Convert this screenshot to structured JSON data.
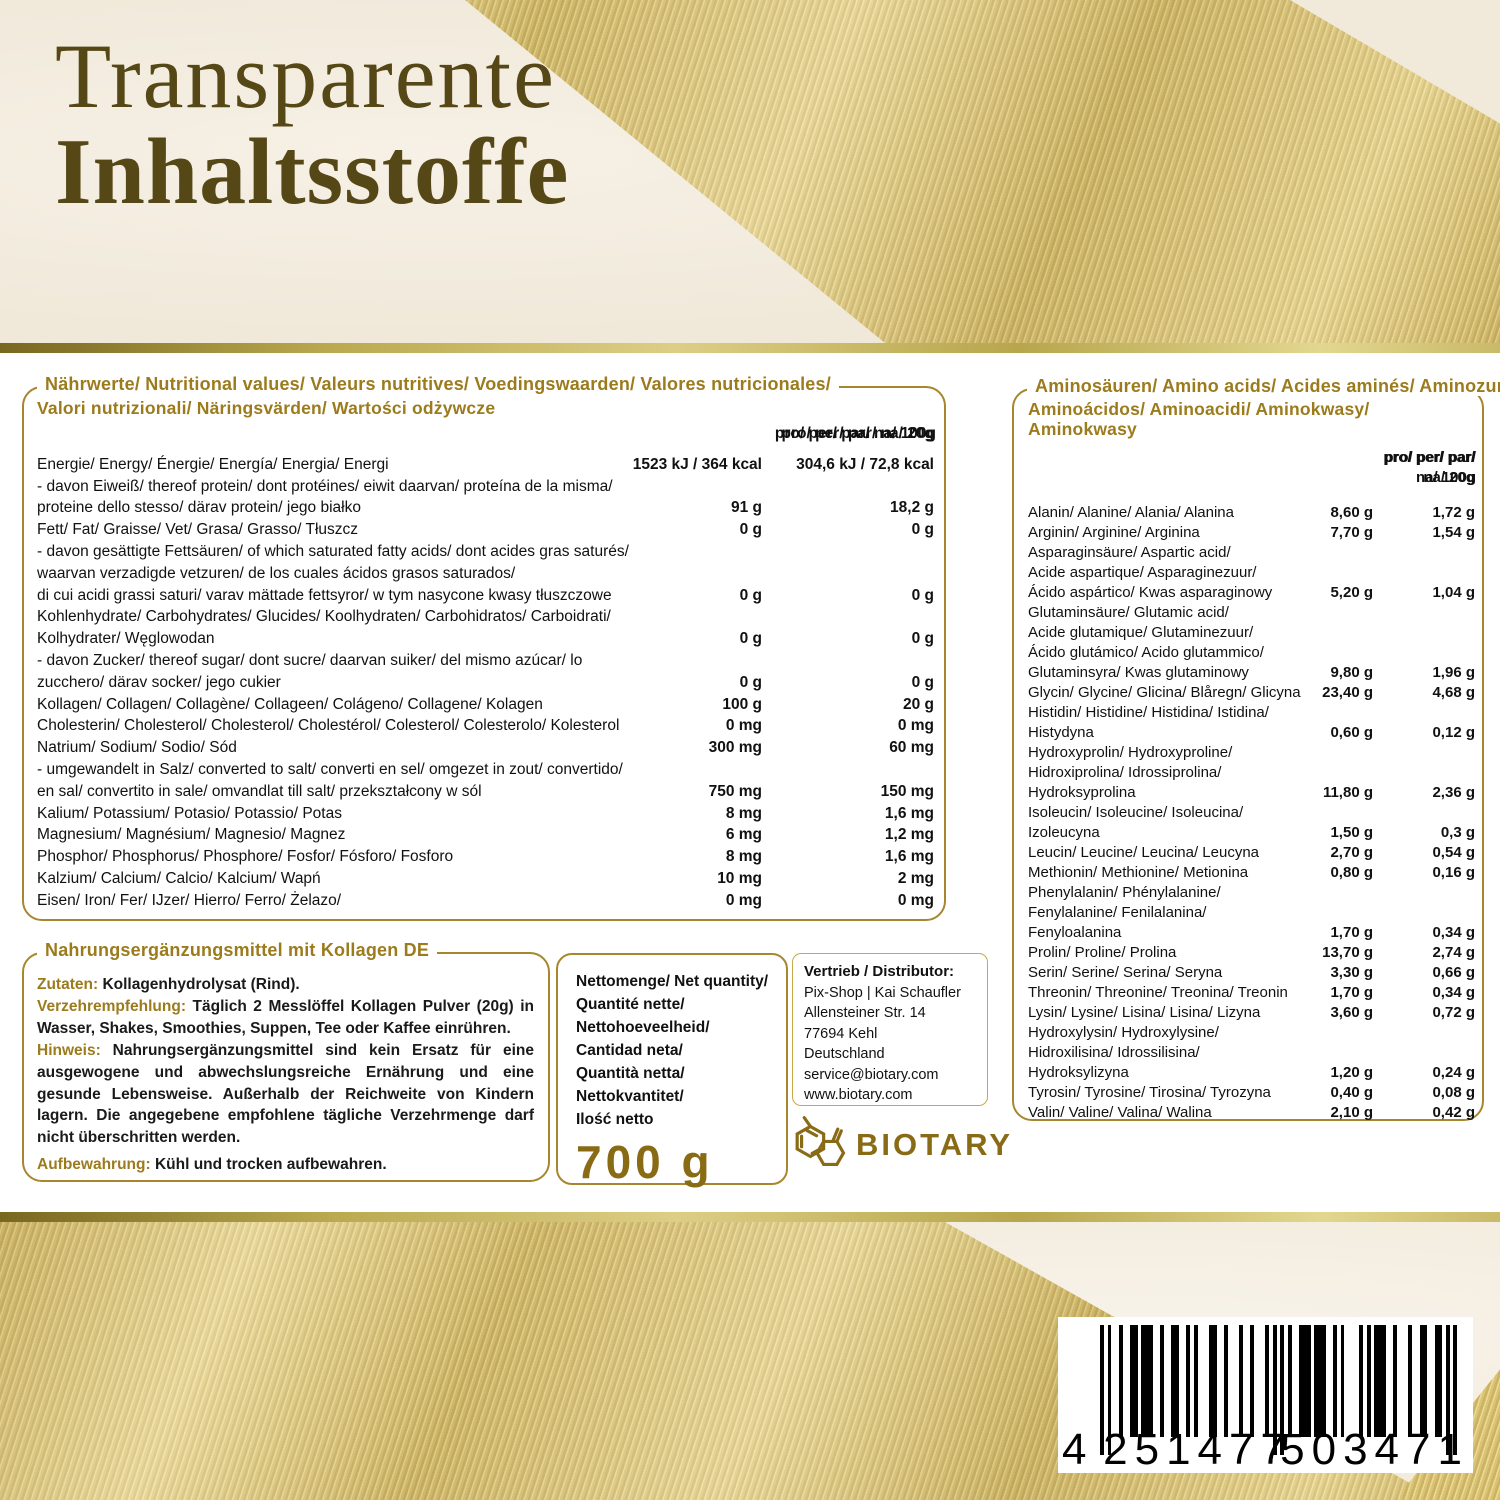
{
  "title": {
    "line1": "Transparente",
    "line2": "Inhaltsstoffe"
  },
  "colors": {
    "gold_accent": "#a8862e",
    "gold_heading": "#9c7b1d",
    "title_olive": "#564816",
    "silk_gold": "#d8c377",
    "cream_background": "#f1eadb",
    "body_text": "#111111"
  },
  "nutrition_box": {
    "legend": "Nährwerte/ Nutritional values/ Valeurs nutritives/ Voedingswaarden/ Valores nutricionales/",
    "subtitle": "Valori nutrizionali/ Näringsvärden/ Wartości odżywcze",
    "col_headers": {
      "per100": [
        "pro/ per/ par/ na/ 100g"
      ],
      "per20": [
        "pro/ per/ par/ na/ 20g"
      ]
    },
    "rows": [
      {
        "label": [
          "Energie/ Energy/ Énergie/ Energía/ Energia/  Energi"
        ],
        "v100": "1523 kJ / 364 kcal",
        "v20": "304,6 kJ / 72,8 kcal"
      },
      {
        "label": [
          "- davon Eiweiß/ thereof protein/ dont protéines/ eiwit daarvan/ proteína de la misma/",
          "proteine dello stesso/ därav protein/ jego białko"
        ],
        "v100": "91 g",
        "v20": "18,2 g"
      },
      {
        "label": [
          "Fett/ Fat/ Graisse/ Vet/ Grasa/ Grasso/ Tłuszcz"
        ],
        "v100": "0 g",
        "v20": "0 g"
      },
      {
        "label": [
          "- davon gesättigte Fettsäuren/ of which saturated fatty acids/ dont acides gras saturés/",
          "waarvan verzadigde vetzuren/ de los cuales ácidos grasos saturados/",
          "di cui acidi grassi saturi/ varav mättade fettsyror/ w tym nasycone kwasy tłuszczowe"
        ],
        "v100": "0 g",
        "v20": "0 g"
      },
      {
        "label": [
          "Kohlenhydrate/  Carbohydrates/  Glucides/  Koolhydraten/  Carbohidratos/  Carboidrati/",
          "Kolhydrater/ Węglowodan"
        ],
        "v100": "0 g",
        "v20": "0 g"
      },
      {
        "label": [
          "- davon Zucker/ thereof sugar/ dont sucre/ daarvan suiker/ del mismo azúcar/ lo",
          "zucchero/ därav socker/ jego cukier"
        ],
        "v100": "0 g",
        "v20": "0 g"
      },
      {
        "label": [
          "Kollagen/ Collagen/ Collagène/ Collageen/ Colágeno/ Collagene/ Kolagen"
        ],
        "v100": "100 g",
        "v20": "20 g"
      },
      {
        "label": [
          "Cholesterin/ Cholesterol/ Cholesterol/ Cholestérol/ Colesterol/ Colesterolo/ Kolesterol"
        ],
        "v100": "0 mg",
        "v20": "0 mg"
      },
      {
        "label": [
          "Natrium/ Sodium/ Sodio/ Sód"
        ],
        "v100": "300 mg",
        "v20": "60 mg"
      },
      {
        "label": [
          "- umgewandelt in Salz/ converted to salt/ converti en sel/ omgezet in zout/ convertido/",
          "en sal/ convertito in sale/ omvandlat till salt/ przekształcony w sól"
        ],
        "v100": "750 mg",
        "v20": "150 mg"
      },
      {
        "label": [
          "Kalium/ Potassium/ Potasio/ Potassio/ Potas"
        ],
        "v100": "8 mg",
        "v20": "1,6 mg"
      },
      {
        "label": [
          "Magnesium/ Magnésium/ Magnesio/ Magnez"
        ],
        "v100": "6 mg",
        "v20": "1,2 mg"
      },
      {
        "label": [
          "Phosphor/ Phosphorus/ Phosphore/ Fosfor/ Fósforo/ Fosforo"
        ],
        "v100": "8 mg",
        "v20": "1,6 mg"
      },
      {
        "label": [
          "Kalzium/ Calcium/ Calcio/ Kalcium/ Wapń"
        ],
        "v100": "10 mg",
        "v20": "2 mg"
      },
      {
        "label": [
          "Eisen/ Iron/ Fer/ IJzer/ Hierro/ Ferro/ Żelazo/"
        ],
        "v100": "0 mg",
        "v20": "0 mg"
      }
    ]
  },
  "amino_box": {
    "legend": "Aminosäuren/ Amino acids/ Acides aminés/ Aminozuren/",
    "subtitle": "Aminoácidos/ Aminoacidi/ Aminokwasy/ Aminokwasy",
    "col_headers": {
      "per100": [
        "pro/ per/ par/",
        "na/ 100g"
      ],
      "per20": [
        "pro/ per/ par/",
        "na/ 20g"
      ]
    },
    "rows": [
      {
        "label": [
          "Alanin/ Alanine/ Alania/ Alanina"
        ],
        "v100": "8,60 g",
        "v20": "1,72 g"
      },
      {
        "label": [
          "Arginin/ Arginine/ Arginina"
        ],
        "v100": "7,70 g",
        "v20": "1,54 g"
      },
      {
        "label": [
          "Asparaginsäure/ Aspartic acid/",
          "Acide aspartique/ Asparaginezuur/",
          "Ácido aspártico/ Kwas asparaginowy"
        ],
        "v100": "5,20 g",
        "v20": "1,04 g"
      },
      {
        "label": [
          "Glutaminsäure/ Glutamic acid/",
          "Acide glutamique/ Glutaminezuur/",
          "Ácido glutámico/ Acido glutammico/",
          "Glutaminsyra/ Kwas glutaminowy"
        ],
        "v100": "9,80 g",
        "v20": "1,96 g"
      },
      {
        "label": [
          "Glycin/ Glycine/ Glicina/ Blåregn/ Glicyna"
        ],
        "v100": "23,40 g",
        "v20": "4,68 g"
      },
      {
        "label": [
          "Histidin/ Histidine/ Histidina/ Istidina/",
          "Histydyna"
        ],
        "v100": "0,60 g",
        "v20": "0,12 g"
      },
      {
        "label": [
          "Hydroxyprolin/ Hydroxyproline/",
          "Hidroxiprolina/ Idrossiprolina/",
          "Hydroksyprolina"
        ],
        "v100": "11,80 g",
        "v20": "2,36 g"
      },
      {
        "label": [
          "Isoleucin/ Isoleucine/ Isoleucina/",
          "Izoleucyna"
        ],
        "v100": "1,50 g",
        "v20": "0,3 g"
      },
      {
        "label": [
          "Leucin/ Leucine/ Leucina/ Leucyna"
        ],
        "v100": "2,70 g",
        "v20": "0,54 g"
      },
      {
        "label": [
          "Methionin/ Methionine/ Metionina"
        ],
        "v100": "0,80 g",
        "v20": "0,16 g"
      },
      {
        "label": [
          "Phenylalanin/ Phénylalanine/",
          "Fenylalanine/ Fenilalanina/",
          "Fenyloalanina"
        ],
        "v100": "1,70 g",
        "v20": "0,34 g"
      },
      {
        "label": [
          "Prolin/ Proline/ Prolina"
        ],
        "v100": "13,70 g",
        "v20": "2,74 g"
      },
      {
        "label": [
          "Serin/ Serine/ Serina/ Seryna"
        ],
        "v100": "3,30 g",
        "v20": "0,66 g"
      },
      {
        "label": [
          "Threonin/ Threonine/ Treonina/ Treonin"
        ],
        "v100": "1,70 g",
        "v20": "0,34 g"
      },
      {
        "label": [
          "Lysin/ Lysine/ Lisina/ Lisina/ Lizyna"
        ],
        "v100": "3,60 g",
        "v20": "0,72 g"
      },
      {
        "label": [
          "Hydroxylysin/ Hydroxylysine/",
          "Hidroxilisina/ Idrossilisina/",
          "Hydroksylizyna"
        ],
        "v100": "1,20 g",
        "v20": "0,24 g"
      },
      {
        "label": [
          "Tyrosin/ Tyrosine/ Tirosina/ Tyrozyna"
        ],
        "v100": "0,40 g",
        "v20": "0,08 g"
      },
      {
        "label": [
          "Valin/ Valine/ Valina/ Walina"
        ],
        "v100": "2,10 g",
        "v20": "0,42 g"
      }
    ]
  },
  "info_box": {
    "legend": "Nahrungsergänzungsmittel mit Kollagen  DE",
    "paragraphs": [
      {
        "label": "Zutaten:",
        "text": " Kollagenhydrolysat (Rind)."
      },
      {
        "label": "Verzehrempfehlung:",
        "text": " Täglich 2 Messlöffel Kollagen Pulver (20g) in Wasser, Shakes, Smoothies, Suppen, Tee oder Kaffee einrühren."
      },
      {
        "label": "Hinweis:",
        "text": " Nahrungsergänzungsmittel sind kein Ersatz für eine ausgewogene und abwechslungsreiche Ernährung und eine gesunde Lebensweise. Außerhalb der Reichweite von Kindern lagern. Die angegebene empfohlene tägliche Verzehrmenge darf nicht überschritten werden."
      },
      {
        "label": "Aufbewahrung:",
        "text": " Kühl und trocken aufbewahren."
      }
    ]
  },
  "net_box": {
    "lines": [
      "Nettomenge/ Net quantity/",
      "Quantité nette/",
      "Nettohoeveelheid/",
      "Cantidad neta/",
      "Quantità netta/",
      "Nettokvantitet/",
      "Ilość netto"
    ],
    "amount": "700 g"
  },
  "distributor_box": {
    "title": "Vertrieb / Distributor:",
    "lines": [
      "Pix-Shop | Kai Schaufler",
      "Allensteiner Str. 14",
      "77694 Kehl",
      "Deutschland",
      "service@biotary.com",
      "www.biotary.com"
    ]
  },
  "brand": {
    "name": "BIOTARY",
    "icon": "molecule-hexagons-icon"
  },
  "barcode": {
    "value": "4251477503471",
    "display": [
      "4",
      "251477",
      "503471"
    ]
  }
}
